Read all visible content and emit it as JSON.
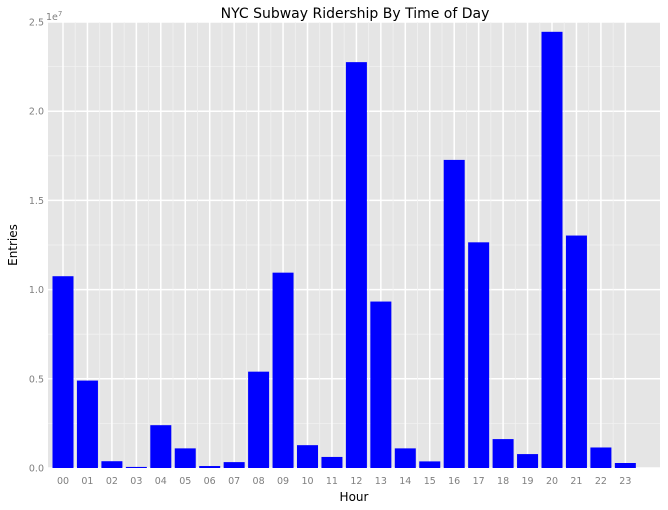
{
  "chart_data": {
    "type": "bar",
    "title": "NYC Subway Ridership By Time of Day",
    "xlabel": "Hour",
    "ylabel": "Entries",
    "y_scale_label": "1e7",
    "categories": [
      "00",
      "01",
      "02",
      "03",
      "04",
      "05",
      "06",
      "07",
      "08",
      "09",
      "10",
      "11",
      "12",
      "13",
      "14",
      "15",
      "16",
      "17",
      "18",
      "19",
      "20",
      "21",
      "22",
      "23"
    ],
    "values": [
      10750000,
      4900000,
      380000,
      60000,
      2400000,
      1100000,
      110000,
      330000,
      5400000,
      10950000,
      1280000,
      620000,
      22750000,
      9330000,
      1100000,
      370000,
      17270000,
      12650000,
      1620000,
      780000,
      24450000,
      13030000,
      1150000,
      280000
    ],
    "ylim": [
      0,
      25000000
    ],
    "yticks": [
      0,
      5000000,
      10000000,
      15000000,
      20000000,
      25000000
    ],
    "ytick_labels": [
      "0.0",
      "0.5",
      "1.0",
      "1.5",
      "2.0",
      "2.5"
    ],
    "grid": true,
    "colors": {
      "bar": "#0000ff",
      "panel": "#e5e5e5",
      "grid_major": "#ffffff",
      "grid_minor": "#f2f2f2"
    }
  }
}
